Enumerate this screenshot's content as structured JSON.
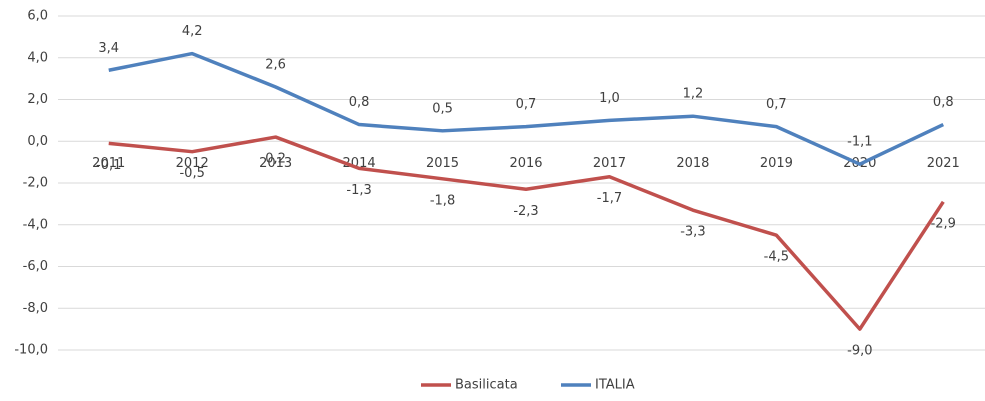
{
  "chart_data": {
    "type": "line",
    "categories": [
      "2011",
      "2012",
      "2013",
      "2014",
      "2015",
      "2016",
      "2017",
      "2018",
      "2019",
      "2020",
      "2021"
    ],
    "series": [
      {
        "name": "Basilicata",
        "color": "#c0504d",
        "values": [
          -0.1,
          -0.5,
          0.2,
          -1.3,
          -1.8,
          -2.3,
          -1.7,
          -3.3,
          -4.5,
          -9.0,
          -2.9
        ],
        "value_labels": [
          "-0,1",
          "-0,5",
          "0,2",
          "-1,3",
          "-1,8",
          "-2,3",
          "-1,7",
          "-3,3",
          "-4,5",
          "-9,0",
          "-2,9"
        ]
      },
      {
        "name": "ITALIA",
        "color": "#4f81bd",
        "values": [
          3.4,
          4.2,
          2.6,
          0.8,
          0.5,
          0.7,
          1.0,
          1.2,
          0.7,
          -1.1,
          0.8
        ],
        "value_labels": [
          "3,4",
          "4,2",
          "2,6",
          "0,8",
          "0,5",
          "0,7",
          "1,0",
          "1,2",
          "0,7",
          "-1,1",
          "0,8"
        ]
      }
    ],
    "ylim": [
      -10,
      6
    ],
    "yticks": [
      {
        "value": -10,
        "label": "-10,0"
      },
      {
        "value": -8,
        "label": "-8,0"
      },
      {
        "value": -6,
        "label": "-6,0"
      },
      {
        "value": -4,
        "label": "-4,0"
      },
      {
        "value": -2,
        "label": "-2,0"
      },
      {
        "value": 0,
        "label": "0,0"
      },
      {
        "value": 2,
        "label": "2,0"
      },
      {
        "value": 4,
        "label": "4,0"
      },
      {
        "value": 6,
        "label": "6,0"
      }
    ],
    "grid": true,
    "legend": "bottom"
  }
}
